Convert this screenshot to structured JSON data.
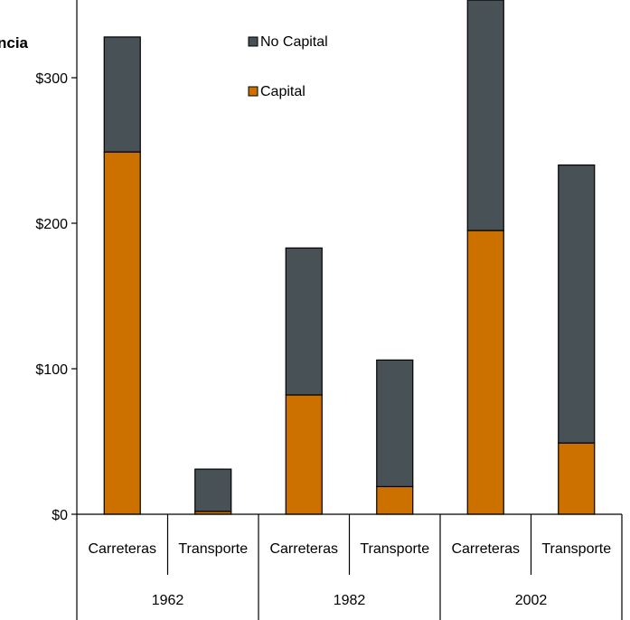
{
  "chart_data": {
    "type": "bar",
    "stacked": true,
    "title_fragment": "ncia",
    "categories": [
      {
        "label": "Carreteras",
        "group": "1962"
      },
      {
        "label": "Transporte",
        "group": "1962"
      },
      {
        "label": "Carreteras",
        "group": "1982"
      },
      {
        "label": "Transporte",
        "group": "1982"
      },
      {
        "label": "Carreteras",
        "group": "2002"
      },
      {
        "label": "Transporte",
        "group": "2002"
      }
    ],
    "groups": [
      "1962",
      "1982",
      "2002"
    ],
    "series": [
      {
        "name": "Capital",
        "color": "#cc7000",
        "values": [
          249,
          2,
          82,
          19,
          195,
          49
        ]
      },
      {
        "name": "No Capital",
        "color": "#485155",
        "values": [
          79,
          29,
          101,
          87,
          165,
          191
        ]
      }
    ],
    "ylim": [
      0,
      350
    ],
    "yticks": [
      {
        "value": 0,
        "label": "$0"
      },
      {
        "value": 100,
        "label": "$100"
      },
      {
        "value": 200,
        "label": "$200"
      },
      {
        "value": 300,
        "label": "$300"
      }
    ],
    "legend": {
      "placement": "top",
      "entries": [
        {
          "label": "No Capital",
          "color": "#485155"
        },
        {
          "label": "Capital",
          "color": "#cc7000"
        }
      ]
    },
    "grid": false
  }
}
